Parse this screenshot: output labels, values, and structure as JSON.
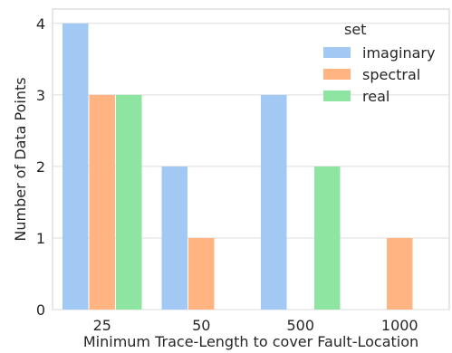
{
  "chart_data": {
    "type": "bar",
    "title": "",
    "xlabel": "Minimum Trace-Length to cover Fault-Location",
    "ylabel": "Number of Data Points",
    "categories": [
      "25",
      "50",
      "500",
      "1000"
    ],
    "series": [
      {
        "name": "imaginary",
        "values": [
          4,
          2,
          3,
          0
        ],
        "color": "#a1c9f4"
      },
      {
        "name": "spectral",
        "values": [
          3,
          1,
          0,
          1
        ],
        "color": "#ffb482"
      },
      {
        "name": "real",
        "values": [
          3,
          0,
          2,
          0
        ],
        "color": "#8de5a1"
      }
    ],
    "ylim": [
      0,
      4.2
    ],
    "yticks": [
      "0",
      "1",
      "2",
      "3",
      "4"
    ],
    "grid": true,
    "legend": {
      "title": "set",
      "placement": "top-right"
    }
  }
}
